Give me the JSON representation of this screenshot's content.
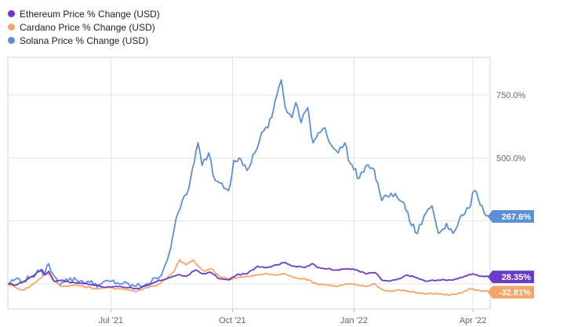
{
  "chart_data": {
    "type": "line",
    "title": "",
    "xlabel": "",
    "ylabel": "",
    "x_range": [
      "2021-04-14",
      "2022-04-14"
    ],
    "y_range": [
      -100,
      900
    ],
    "x_ticks": [
      {
        "date": "2021-07-01",
        "label": "Jul '21"
      },
      {
        "date": "2021-10-01",
        "label": "Oct '21"
      },
      {
        "date": "2022-01-01",
        "label": "Jan '22"
      },
      {
        "date": "2022-04-01",
        "label": "Apr '22"
      }
    ],
    "y_ticks": [
      {
        "value": 750,
        "label": "750.0%"
      },
      {
        "value": 500,
        "label": "500.0%"
      },
      {
        "value": 250,
        "label": ""
      },
      {
        "value": 0,
        "label": ""
      }
    ],
    "grid": true,
    "legend_position": "top-left",
    "series": [
      {
        "name": "Ethereum Price % Change (USD)",
        "color": "#6a3bc9",
        "end_label": "28.35%",
        "points": [
          [
            "2021-04-14",
            0
          ],
          [
            "2021-04-20",
            -5
          ],
          [
            "2021-04-28",
            15
          ],
          [
            "2021-05-05",
            40
          ],
          [
            "2021-05-10",
            55
          ],
          [
            "2021-05-12",
            35
          ],
          [
            "2021-05-15",
            50
          ],
          [
            "2021-05-19",
            10
          ],
          [
            "2021-05-25",
            15
          ],
          [
            "2021-06-01",
            5
          ],
          [
            "2021-06-10",
            2
          ],
          [
            "2021-06-20",
            -5
          ],
          [
            "2021-06-26",
            -15
          ],
          [
            "2021-07-05",
            -10
          ],
          [
            "2021-07-15",
            -15
          ],
          [
            "2021-07-22",
            -20
          ],
          [
            "2021-07-30",
            -5
          ],
          [
            "2021-08-05",
            10
          ],
          [
            "2021-08-15",
            25
          ],
          [
            "2021-08-20",
            35
          ],
          [
            "2021-08-27",
            30
          ],
          [
            "2021-09-03",
            55
          ],
          [
            "2021-09-08",
            40
          ],
          [
            "2021-09-15",
            45
          ],
          [
            "2021-09-21",
            20
          ],
          [
            "2021-09-28",
            15
          ],
          [
            "2021-10-04",
            35
          ],
          [
            "2021-10-12",
            40
          ],
          [
            "2021-10-20",
            70
          ],
          [
            "2021-10-27",
            65
          ],
          [
            "2021-11-03",
            75
          ],
          [
            "2021-11-10",
            85
          ],
          [
            "2021-11-16",
            70
          ],
          [
            "2021-11-25",
            65
          ],
          [
            "2021-12-01",
            80
          ],
          [
            "2021-12-04",
            65
          ],
          [
            "2021-12-12",
            60
          ],
          [
            "2021-12-20",
            55
          ],
          [
            "2021-12-27",
            60
          ],
          [
            "2022-01-03",
            55
          ],
          [
            "2022-01-10",
            40
          ],
          [
            "2022-01-17",
            45
          ],
          [
            "2022-01-22",
            15
          ],
          [
            "2022-01-28",
            10
          ],
          [
            "2022-02-05",
            20
          ],
          [
            "2022-02-10",
            35
          ],
          [
            "2022-02-17",
            25
          ],
          [
            "2022-02-24",
            10
          ],
          [
            "2022-03-05",
            15
          ],
          [
            "2022-03-15",
            15
          ],
          [
            "2022-03-24",
            25
          ],
          [
            "2022-04-01",
            40
          ],
          [
            "2022-04-07",
            30
          ],
          [
            "2022-04-14",
            28.35
          ]
        ]
      },
      {
        "name": "Cardano Price % Change (USD)",
        "color": "#f5a46a",
        "end_label": "-32.81%",
        "points": [
          [
            "2021-04-14",
            0
          ],
          [
            "2021-04-20",
            -15
          ],
          [
            "2021-04-25",
            -25
          ],
          [
            "2021-05-01",
            -10
          ],
          [
            "2021-05-08",
            20
          ],
          [
            "2021-05-14",
            45
          ],
          [
            "2021-05-18",
            15
          ],
          [
            "2021-05-25",
            -10
          ],
          [
            "2021-06-05",
            -5
          ],
          [
            "2021-06-20",
            -20
          ],
          [
            "2021-06-28",
            -15
          ],
          [
            "2021-07-10",
            -20
          ],
          [
            "2021-07-20",
            -30
          ],
          [
            "2021-07-28",
            -15
          ],
          [
            "2021-08-05",
            -5
          ],
          [
            "2021-08-12",
            20
          ],
          [
            "2021-08-18",
            50
          ],
          [
            "2021-08-22",
            95
          ],
          [
            "2021-08-27",
            75
          ],
          [
            "2021-09-01",
            95
          ],
          [
            "2021-09-05",
            70
          ],
          [
            "2021-09-10",
            50
          ],
          [
            "2021-09-15",
            60
          ],
          [
            "2021-09-21",
            30
          ],
          [
            "2021-09-28",
            20
          ],
          [
            "2021-10-05",
            25
          ],
          [
            "2021-10-15",
            30
          ],
          [
            "2021-10-25",
            40
          ],
          [
            "2021-11-03",
            35
          ],
          [
            "2021-11-10",
            40
          ],
          [
            "2021-11-16",
            25
          ],
          [
            "2021-11-25",
            20
          ],
          [
            "2021-12-04",
            0
          ],
          [
            "2021-12-12",
            -5
          ],
          [
            "2021-12-20",
            -10
          ],
          [
            "2021-12-27",
            0
          ],
          [
            "2022-01-03",
            -5
          ],
          [
            "2022-01-10",
            -10
          ],
          [
            "2022-01-17",
            0
          ],
          [
            "2022-01-21",
            -20
          ],
          [
            "2022-01-27",
            -30
          ],
          [
            "2022-02-05",
            -25
          ],
          [
            "2022-02-12",
            -30
          ],
          [
            "2022-02-24",
            -40
          ],
          [
            "2022-03-05",
            -40
          ],
          [
            "2022-03-15",
            -45
          ],
          [
            "2022-03-24",
            -35
          ],
          [
            "2022-03-29",
            -20
          ],
          [
            "2022-04-05",
            -25
          ],
          [
            "2022-04-14",
            -32.81
          ]
        ]
      },
      {
        "name": "Solana Price % Change (USD)",
        "color": "#5b8fd6",
        "end_label": "267.6%",
        "points": [
          [
            "2021-04-14",
            0
          ],
          [
            "2021-04-20",
            20
          ],
          [
            "2021-04-26",
            10
          ],
          [
            "2021-05-02",
            30
          ],
          [
            "2021-05-08",
            50
          ],
          [
            "2021-05-12",
            40
          ],
          [
            "2021-05-15",
            80
          ],
          [
            "2021-05-18",
            40
          ],
          [
            "2021-05-22",
            0
          ],
          [
            "2021-05-28",
            20
          ],
          [
            "2021-06-05",
            15
          ],
          [
            "2021-06-15",
            5
          ],
          [
            "2021-06-22",
            -5
          ],
          [
            "2021-06-30",
            10
          ],
          [
            "2021-07-10",
            0
          ],
          [
            "2021-07-20",
            -10
          ],
          [
            "2021-07-28",
            0
          ],
          [
            "2021-08-05",
            20
          ],
          [
            "2021-08-10",
            60
          ],
          [
            "2021-08-14",
            120
          ],
          [
            "2021-08-18",
            220
          ],
          [
            "2021-08-24",
            330
          ],
          [
            "2021-08-29",
            380
          ],
          [
            "2021-09-02",
            480
          ],
          [
            "2021-09-05",
            560
          ],
          [
            "2021-09-08",
            470
          ],
          [
            "2021-09-13",
            520
          ],
          [
            "2021-09-18",
            410
          ],
          [
            "2021-09-23",
            400
          ],
          [
            "2021-09-28",
            370
          ],
          [
            "2021-10-02",
            490
          ],
          [
            "2021-10-06",
            500
          ],
          [
            "2021-10-12",
            450
          ],
          [
            "2021-10-18",
            520
          ],
          [
            "2021-10-23",
            600
          ],
          [
            "2021-10-28",
            620
          ],
          [
            "2021-11-01",
            690
          ],
          [
            "2021-11-05",
            780
          ],
          [
            "2021-11-07",
            810
          ],
          [
            "2021-11-10",
            700
          ],
          [
            "2021-11-15",
            660
          ],
          [
            "2021-11-18",
            720
          ],
          [
            "2021-11-22",
            640
          ],
          [
            "2021-11-27",
            700
          ],
          [
            "2021-12-01",
            560
          ],
          [
            "2021-12-05",
            600
          ],
          [
            "2021-12-10",
            620
          ],
          [
            "2021-12-15",
            550
          ],
          [
            "2021-12-20",
            520
          ],
          [
            "2021-12-25",
            560
          ],
          [
            "2021-12-29",
            480
          ],
          [
            "2022-01-05",
            420
          ],
          [
            "2022-01-10",
            470
          ],
          [
            "2022-01-15",
            460
          ],
          [
            "2022-01-19",
            400
          ],
          [
            "2022-01-22",
            330
          ],
          [
            "2022-01-29",
            360
          ],
          [
            "2022-02-03",
            340
          ],
          [
            "2022-02-08",
            320
          ],
          [
            "2022-02-12",
            250
          ],
          [
            "2022-02-18",
            200
          ],
          [
            "2022-02-23",
            270
          ],
          [
            "2022-03-01",
            310
          ],
          [
            "2022-03-06",
            200
          ],
          [
            "2022-03-12",
            240
          ],
          [
            "2022-03-17",
            200
          ],
          [
            "2022-03-22",
            260
          ],
          [
            "2022-03-26",
            280
          ],
          [
            "2022-03-29",
            300
          ],
          [
            "2022-04-02",
            370
          ],
          [
            "2022-04-05",
            340
          ],
          [
            "2022-04-08",
            310
          ],
          [
            "2022-04-11",
            270
          ],
          [
            "2022-04-14",
            267.6
          ]
        ]
      }
    ]
  }
}
